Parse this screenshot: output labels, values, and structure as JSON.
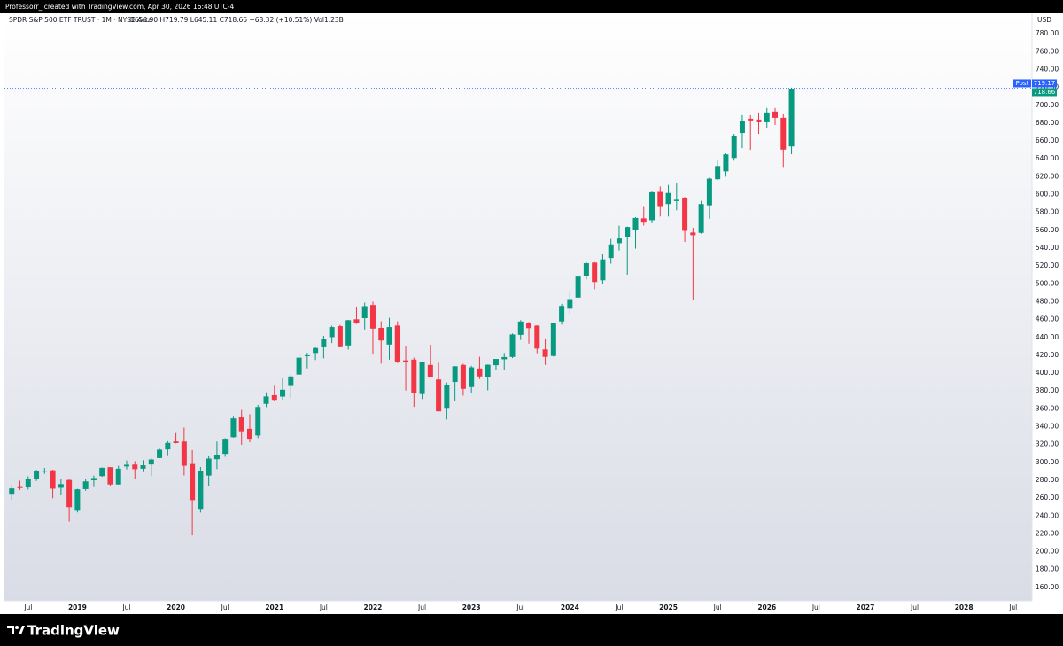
{
  "author_line": "Professorr_ created with TradingView.com, Apr 30, 2026 16:48 UTC-4",
  "brand": "TradingView",
  "chart_data": {
    "type": "candlestick",
    "symbol": "SPDR S&P 500 ETF TRUST · 1M · NYSE Arca",
    "ohlc_text": "O653.90 H719.79 L645.11 C718.66 +68.32 (+10.51%) Vol1.23B",
    "currency": "USD",
    "up_color": "#089981",
    "down_color": "#f23645",
    "grid": false,
    "x": [
      "2018-05",
      "2018-06",
      "2018-07",
      "2018-08",
      "2018-09",
      "2018-10",
      "2018-11",
      "2018-12",
      "2019-01",
      "2019-02",
      "2019-03",
      "2019-04",
      "2019-05",
      "2019-06",
      "2019-07",
      "2019-08",
      "2019-09",
      "2019-10",
      "2019-11",
      "2019-12",
      "2020-01",
      "2020-02",
      "2020-03",
      "2020-04",
      "2020-05",
      "2020-06",
      "2020-07",
      "2020-08",
      "2020-09",
      "2020-10",
      "2020-11",
      "2020-12",
      "2021-01",
      "2021-02",
      "2021-03",
      "2021-04",
      "2021-05",
      "2021-06",
      "2021-07",
      "2021-08",
      "2021-09",
      "2021-10",
      "2021-11",
      "2021-12",
      "2022-01",
      "2022-02",
      "2022-03",
      "2022-04",
      "2022-05",
      "2022-06",
      "2022-07",
      "2022-08",
      "2022-09",
      "2022-10",
      "2022-11",
      "2022-12",
      "2023-01",
      "2023-02",
      "2023-03",
      "2023-04",
      "2023-05",
      "2023-06",
      "2023-07",
      "2023-08",
      "2023-09",
      "2023-10",
      "2023-11",
      "2023-12",
      "2024-01",
      "2024-02",
      "2024-03",
      "2024-04",
      "2024-05",
      "2024-06",
      "2024-07",
      "2024-08",
      "2024-09",
      "2024-10",
      "2024-11",
      "2024-12",
      "2025-01",
      "2025-02",
      "2025-03",
      "2025-04",
      "2025-05",
      "2025-06",
      "2025-07",
      "2025-08",
      "2025-09",
      "2025-10",
      "2025-11",
      "2025-12",
      "2026-01",
      "2026-02",
      "2026-03",
      "2026-04"
    ],
    "open": [
      263.9,
      272.4,
      272,
      281.6,
      289.8,
      291.2,
      271.6,
      280.3,
      245.9,
      270.1,
      280,
      284.7,
      294.7,
      275.3,
      295.5,
      297.6,
      293,
      297.7,
      304.9,
      314.6,
      323.5,
      323.4,
      298.2,
      248,
      285.3,
      303.6,
      309.6,
      328.3,
      350.4,
      337.7,
      330.2,
      365.6,
      375.3,
      373.7,
      385.6,
      398.4,
      419.4,
      422.6,
      428.9,
      440.3,
      452.6,
      431,
      460.3,
      461.6,
      476.3,
      450.7,
      432,
      453.3,
      414.3,
      415.2,
      376.6,
      409.2,
      392.9,
      361.1,
      390.1,
      409.2,
      384.4,
      405.2,
      395.4,
      408.9,
      415.5,
      418.1,
      442.9,
      456.3,
      453.2,
      426.6,
      419.2,
      457.9,
      472.2,
      484.6,
      509,
      523.8,
      504,
      529,
      545.6,
      552.6,
      560.5,
      573.4,
      571.3,
      603,
      589.4,
      592.7,
      596.2,
      557.5,
      557.1,
      588,
      617.2,
      626,
      641,
      669,
      685,
      684,
      681,
      693,
      686,
      653.9
    ],
    "high": [
      274.3,
      279.5,
      284.4,
      291.7,
      293.9,
      291.9,
      281.2,
      281.8,
      270.5,
      281.2,
      285.2,
      294.4,
      294.9,
      296.3,
      302.2,
      301.4,
      302.5,
      304.5,
      315.5,
      323.8,
      332.9,
      339.1,
      313.8,
      294.9,
      306.8,
      323.4,
      327.2,
      351.3,
      358.8,
      354,
      364.4,
      378.5,
      385.9,
      394.2,
      398,
      420.7,
      422.8,
      428.8,
      441.8,
      453.1,
      454,
      459.6,
      473.5,
      479,
      480,
      458.1,
      462,
      458.1,
      429.7,
      417.4,
      413,
      431.7,
      411.7,
      389.5,
      407.7,
      410.5,
      408.2,
      418.3,
      409.7,
      415.9,
      422.6,
      444.3,
      459.4,
      457.3,
      453.7,
      438.1,
      456.4,
      477.6,
      491.9,
      510.1,
      524.6,
      524.4,
      533.1,
      550.3,
      565.2,
      564.2,
      574.7,
      586.1,
      603.4,
      609.1,
      610.8,
      613.2,
      597.3,
      562.9,
      593,
      619,
      639,
      646,
      668,
      689,
      689,
      692,
      697,
      697,
      690,
      719.79
    ],
    "low": [
      257.8,
      269,
      269.6,
      279.2,
      287.2,
      259.9,
      263.1,
      233.8,
      244,
      268.3,
      272.4,
      283.9,
      274,
      275,
      292.2,
      281.7,
      289.3,
      284.8,
      304.7,
      307.1,
      321.3,
      285.5,
      218.3,
      243.9,
      273,
      292.6,
      306.3,
      327.7,
      319.8,
      322.6,
      327.2,
      362,
      368.3,
      370.4,
      371.9,
      398.2,
      405.3,
      414.7,
      416.6,
      433.7,
      428.8,
      426.4,
      455.1,
      448.9,
      420.8,
      410.6,
      415.1,
      411.2,
      380.5,
      362.2,
      371,
      395,
      357,
      348.1,
      368.8,
      374.8,
      377.8,
      393.4,
      380.7,
      403.8,
      403.7,
      416.8,
      437.1,
      433,
      422.3,
      409.2,
      418.6,
      454.3,
      466.4,
      484.2,
      504.9,
      493.9,
      499.5,
      522.6,
      537.4,
      510.3,
      539.4,
      565.3,
      567.9,
      575.4,
      575.4,
      582.4,
      546.9,
      481.8,
      556,
      573,
      616,
      620,
      638,
      652,
      650,
      668,
      675,
      678,
      630,
      645.11
    ],
    "close": [
      270.9,
      271.3,
      281.3,
      290.3,
      290.7,
      270.6,
      275.7,
      249.9,
      269.9,
      278.7,
      282.5,
      294,
      275.3,
      293,
      297.4,
      292.5,
      296.8,
      303.3,
      314.3,
      321.9,
      321.7,
      296.3,
      257.8,
      290.5,
      304.3,
      308.4,
      326.5,
      349.3,
      334.9,
      326.5,
      362.1,
      373.9,
      370.1,
      381.4,
      396.3,
      417.3,
      420,
      428.1,
      438.5,
      451.6,
      429.1,
      459.3,
      455.6,
      475,
      449.9,
      436.6,
      451.6,
      412,
      412.9,
      377.3,
      412,
      396,
      357.2,
      386.2,
      407.7,
      382.4,
      406.5,
      396.3,
      409.4,
      415.9,
      418,
      443.3,
      457.8,
      450.4,
      427.5,
      418.2,
      456.4,
      475.3,
      482.9,
      508.1,
      523.1,
      502,
      527.4,
      544.2,
      550.8,
      563.7,
      573.8,
      568.6,
      602.6,
      586.1,
      601.8,
      594.2,
      559.4,
      554.5,
      589.4,
      617.9,
      632,
      645,
      666,
      682,
      683,
      681,
      692,
      686,
      650.34,
      718.66
    ],
    "post_label": "Post",
    "post_price": 719.17,
    "last_price": 718.66,
    "xlim": [
      "2018-04",
      "2028-08"
    ],
    "xticks": [
      {
        "value": "2018-07",
        "label": "Jul"
      },
      {
        "value": "2019-01",
        "label": "2019"
      },
      {
        "value": "2019-07",
        "label": "Jul"
      },
      {
        "value": "2020-01",
        "label": "2020"
      },
      {
        "value": "2020-07",
        "label": "Jul"
      },
      {
        "value": "2021-01",
        "label": "2021"
      },
      {
        "value": "2021-07",
        "label": "Jul"
      },
      {
        "value": "2022-01",
        "label": "2022"
      },
      {
        "value": "2022-07",
        "label": "Jul"
      },
      {
        "value": "2023-01",
        "label": "2023"
      },
      {
        "value": "2023-07",
        "label": "Jul"
      },
      {
        "value": "2024-01",
        "label": "2024"
      },
      {
        "value": "2024-07",
        "label": "Jul"
      },
      {
        "value": "2025-01",
        "label": "2025"
      },
      {
        "value": "2025-07",
        "label": "Jul"
      },
      {
        "value": "2026-01",
        "label": "2026"
      },
      {
        "value": "2026-07",
        "label": "Jul"
      },
      {
        "value": "2027-01",
        "label": "2027"
      },
      {
        "value": "2027-07",
        "label": "Jul"
      },
      {
        "value": "2028-01",
        "label": "2028"
      },
      {
        "value": "2028-07",
        "label": "Jul"
      }
    ],
    "ylim": [
      145,
      803
    ],
    "yticks": [
      {
        "value": 160,
        "label": "160.00"
      },
      {
        "value": 180,
        "label": "180.00"
      },
      {
        "value": 200,
        "label": "200.00"
      },
      {
        "value": 220,
        "label": "220.00"
      },
      {
        "value": 240,
        "label": "240.00"
      },
      {
        "value": 260,
        "label": "260.00"
      },
      {
        "value": 280,
        "label": "280.00"
      },
      {
        "value": 300,
        "label": "300.00"
      },
      {
        "value": 320,
        "label": "320.00"
      },
      {
        "value": 340,
        "label": "340.00"
      },
      {
        "value": 360,
        "label": "360.00"
      },
      {
        "value": 380,
        "label": "380.00"
      },
      {
        "value": 400,
        "label": "400.00"
      },
      {
        "value": 420,
        "label": "420.00"
      },
      {
        "value": 440,
        "label": "440.00"
      },
      {
        "value": 460,
        "label": "460.00"
      },
      {
        "value": 480,
        "label": "480.00"
      },
      {
        "value": 500,
        "label": "500.00"
      },
      {
        "value": 520,
        "label": "520.00"
      },
      {
        "value": 540,
        "label": "540.00"
      },
      {
        "value": 560,
        "label": "560.00"
      },
      {
        "value": 580,
        "label": "580.00"
      },
      {
        "value": 600,
        "label": "600.00"
      },
      {
        "value": 620,
        "label": "620.00"
      },
      {
        "value": 640,
        "label": "640.00"
      },
      {
        "value": 660,
        "label": "660.00"
      },
      {
        "value": 680,
        "label": "680.00"
      },
      {
        "value": 700,
        "label": "700.00"
      },
      {
        "value": 720,
        "label": "720.00"
      },
      {
        "value": 740,
        "label": "740.00"
      },
      {
        "value": 760,
        "label": "760.00"
      },
      {
        "value": 780,
        "label": "780.00"
      }
    ]
  }
}
